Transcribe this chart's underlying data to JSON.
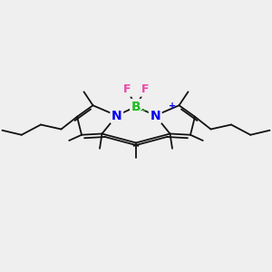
{
  "bg_color": "#efefef",
  "bond_color": "#111111",
  "bond_width": 1.3,
  "N_color": "#0000ee",
  "B_color": "#22bb22",
  "F_color": "#ee44aa",
  "plus_color": "#0000ee",
  "minus_color": "#22bb22",
  "figsize": [
    3.0,
    3.0
  ],
  "dpi": 100,
  "xlim": [
    0,
    12
  ],
  "ylim": [
    0,
    10
  ]
}
